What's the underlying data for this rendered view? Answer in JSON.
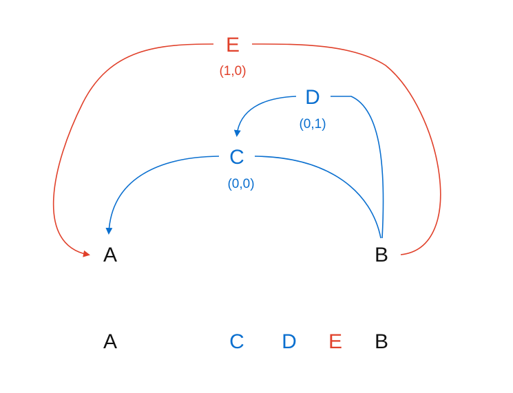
{
  "colors": {
    "blue": "#0a6fcf",
    "red": "#e0402a",
    "black": "#111111"
  },
  "nodes": {
    "A": {
      "label": "A",
      "color": "black"
    },
    "B": {
      "label": "B",
      "color": "black"
    },
    "C": {
      "label": "C",
      "coord": "(0,0)",
      "color": "blue"
    },
    "D": {
      "label": "D",
      "coord": "(0,1)",
      "color": "blue"
    },
    "E": {
      "label": "E",
      "coord": "(1,0)",
      "color": "red"
    }
  },
  "edges": [
    {
      "from": "B",
      "to": "A",
      "via": "C",
      "color": "blue"
    },
    {
      "from": "B",
      "to": "C",
      "via": "D",
      "color": "blue"
    },
    {
      "from": "B",
      "to": "A",
      "via": "E",
      "color": "red"
    }
  ],
  "bottom_row": [
    {
      "label": "A",
      "color": "black"
    },
    {
      "label": "C",
      "color": "blue"
    },
    {
      "label": "D",
      "color": "blue"
    },
    {
      "label": "E",
      "color": "red"
    },
    {
      "label": "B",
      "color": "black"
    }
  ]
}
